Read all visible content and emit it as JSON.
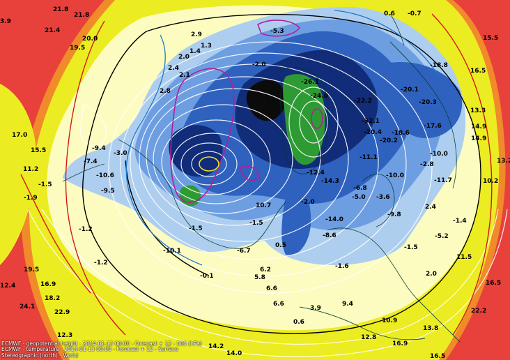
{
  "caption": {
    "line1": "ECMWF - geopotential height - 2014-01-13 00:00 - Forecast + 12 - 500 (hPa)",
    "line2": "ECMWF - temperature - 2014-01-13 00:00 - Forecast + 12 - Surface",
    "line3": "Stereographic (north) - World"
  },
  "colors": {
    "warm": "#e8403a",
    "orange": "#f08a2a",
    "yellow": "#ecec22",
    "cream": "#fcfcc0",
    "light_blue": "#aeceef",
    "mid_blue": "#6e9ee2",
    "blue": "#2f62bf",
    "dark_blue": "#112c78",
    "green": "#2e9a34",
    "black": "#0b0b0b",
    "contour_white": "#ffffff",
    "contour_black": "#000000",
    "contour_red": "#d01818",
    "contour_magenta": "#b0209a",
    "contour_cyan": "#1e78c8",
    "coastline": "#003830"
  },
  "labels": [
    {
      "text": "3.9"
    },
    {
      "text": "21.8"
    },
    {
      "text": "21.8"
    },
    {
      "text": "21.4"
    },
    {
      "text": "20.0"
    },
    {
      "text": "19.5"
    },
    {
      "text": "17.0"
    },
    {
      "text": "15.5"
    },
    {
      "text": "11.2"
    },
    {
      "text": "-1.5"
    },
    {
      "text": "-1.9"
    },
    {
      "text": "-7.4"
    },
    {
      "text": "-10.6"
    },
    {
      "text": "-9.4"
    },
    {
      "text": "-3.0"
    },
    {
      "text": "-9.5"
    },
    {
      "text": "-1.2"
    },
    {
      "text": "-1.2"
    },
    {
      "text": "19.5"
    },
    {
      "text": "12.4"
    },
    {
      "text": "16.9"
    },
    {
      "text": "24.1"
    },
    {
      "text": "18.2"
    },
    {
      "text": "22.9"
    },
    {
      "text": "12.3"
    },
    {
      "text": "2.9"
    },
    {
      "text": "2.0"
    },
    {
      "text": "1.4"
    },
    {
      "text": "1.3"
    },
    {
      "text": "2.4"
    },
    {
      "text": "2.1"
    },
    {
      "text": "2.8"
    },
    {
      "text": "-1.5"
    },
    {
      "text": "-10.1"
    },
    {
      "text": "-0.1"
    },
    {
      "text": "6.2"
    },
    {
      "text": "5.8"
    },
    {
      "text": "6.6"
    },
    {
      "text": "6.6"
    },
    {
      "text": "-6.7"
    },
    {
      "text": "-1.5"
    },
    {
      "text": "0.5"
    },
    {
      "text": "10.7"
    },
    {
      "text": "-2.0"
    },
    {
      "text": "-12.4"
    },
    {
      "text": "-14.3"
    },
    {
      "text": "-14.0"
    },
    {
      "text": "-6.8"
    },
    {
      "text": "-5.0"
    },
    {
      "text": "-3.6"
    },
    {
      "text": "-26.1"
    },
    {
      "text": "-24.0"
    },
    {
      "text": "-22.2"
    },
    {
      "text": "-32.1"
    },
    {
      "text": "-20.4"
    },
    {
      "text": "-20.2"
    },
    {
      "text": "-18.6"
    },
    {
      "text": "-17.6"
    },
    {
      "text": "-20.3"
    },
    {
      "text": "-20.1"
    },
    {
      "text": "-18.8"
    },
    {
      "text": "-11.1"
    },
    {
      "text": "-10.0"
    },
    {
      "text": "-11.7"
    },
    {
      "text": "-10.0"
    },
    {
      "text": "0.6"
    },
    {
      "text": "-0.7"
    },
    {
      "text": "15.5"
    },
    {
      "text": "16.5"
    },
    {
      "text": "13.3"
    },
    {
      "text": "14.9"
    },
    {
      "text": "14.9"
    },
    {
      "text": "13.2"
    },
    {
      "text": "10.2"
    },
    {
      "text": "-2.8"
    },
    {
      "text": "2.4"
    },
    {
      "text": "-1.4"
    },
    {
      "text": "-5.2"
    },
    {
      "text": "11.5"
    },
    {
      "text": "2.0"
    },
    {
      "text": "16.5"
    },
    {
      "text": "22.2"
    },
    {
      "text": "13.8"
    },
    {
      "text": "16.9"
    },
    {
      "text": "16.5"
    },
    {
      "text": "12.8"
    },
    {
      "text": "14.2"
    },
    {
      "text": "14.0"
    },
    {
      "text": "10.9"
    },
    {
      "text": "9.4"
    },
    {
      "text": "0.6"
    },
    {
      "text": "3.9"
    },
    {
      "text": "-5.3"
    },
    {
      "text": "-2.0"
    },
    {
      "text": "-1.6"
    },
    {
      "text": "-8.6"
    },
    {
      "text": "-9.8"
    },
    {
      "text": "-1.5"
    }
  ]
}
